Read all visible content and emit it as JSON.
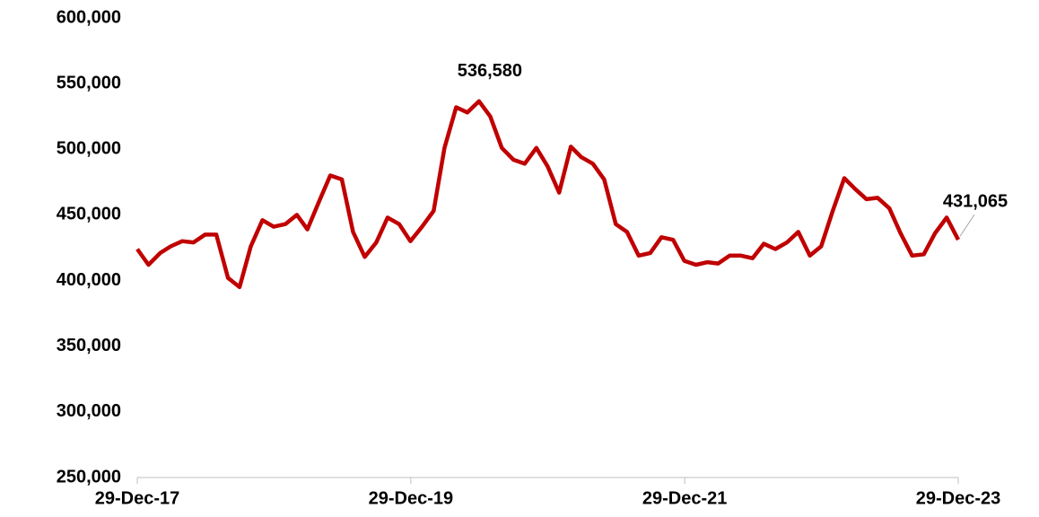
{
  "chart_data": {
    "type": "line",
    "x": [
      "2017-12-29",
      "2018-01-28",
      "2018-02-28",
      "2018-03-28",
      "2018-04-28",
      "2018-05-28",
      "2018-06-28",
      "2018-07-28",
      "2018-08-28",
      "2018-09-28",
      "2018-10-28",
      "2018-11-28",
      "2018-12-28",
      "2019-01-28",
      "2019-02-28",
      "2019-03-28",
      "2019-04-28",
      "2019-05-28",
      "2019-06-28",
      "2019-07-28",
      "2019-08-28",
      "2019-09-28",
      "2019-10-28",
      "2019-11-28",
      "2019-12-28",
      "2020-01-28",
      "2020-02-28",
      "2020-03-28",
      "2020-04-28",
      "2020-05-28",
      "2020-06-28",
      "2020-07-28",
      "2020-08-28",
      "2020-09-28",
      "2020-10-28",
      "2020-11-28",
      "2020-12-28",
      "2021-01-28",
      "2021-02-28",
      "2021-03-28",
      "2021-04-28",
      "2021-05-28",
      "2021-06-28",
      "2021-07-28",
      "2021-08-28",
      "2021-09-28",
      "2021-10-28",
      "2021-11-28",
      "2021-12-28",
      "2022-01-28",
      "2022-02-28",
      "2022-03-28",
      "2022-04-28",
      "2022-05-28",
      "2022-06-28",
      "2022-07-28",
      "2022-08-28",
      "2022-09-28",
      "2022-10-28",
      "2022-11-28",
      "2022-12-28",
      "2023-01-28",
      "2023-02-28",
      "2023-03-28",
      "2023-04-28",
      "2023-05-28",
      "2023-06-28",
      "2023-07-28",
      "2023-08-28",
      "2023-09-28",
      "2023-10-28",
      "2023-11-28",
      "2023-12-29"
    ],
    "series": [
      {
        "color": "#c00000",
        "values": [
          424000,
          412000,
          421000,
          426000,
          430000,
          429000,
          435000,
          435000,
          402000,
          395000,
          426000,
          446000,
          441000,
          443000,
          450000,
          439000,
          460000,
          480000,
          477000,
          437000,
          418000,
          429000,
          448000,
          443000,
          430000,
          441000,
          453000,
          501000,
          532000,
          528000,
          536580,
          525000,
          501000,
          492000,
          489000,
          501000,
          487000,
          467000,
          502000,
          494000,
          489000,
          477000,
          443000,
          437000,
          419000,
          421000,
          433000,
          431000,
          415000,
          412000,
          414000,
          413000,
          419000,
          419000,
          417000,
          428000,
          424000,
          429000,
          437000,
          419000,
          426000,
          453000,
          478000,
          470000,
          462000,
          463000,
          455000,
          436000,
          419000,
          420000,
          436000,
          448000,
          431065
        ],
        "value_labels": [
          null,
          null,
          null,
          null,
          null,
          null,
          null,
          null,
          null,
          null,
          null,
          null,
          null,
          null,
          null,
          null,
          null,
          null,
          null,
          null,
          null,
          null,
          null,
          null,
          null,
          null,
          null,
          null,
          null,
          null,
          "536,580",
          null,
          null,
          null,
          null,
          null,
          null,
          null,
          null,
          null,
          null,
          null,
          null,
          null,
          null,
          null,
          null,
          null,
          null,
          null,
          null,
          null,
          null,
          null,
          null,
          null,
          null,
          null,
          null,
          null,
          null,
          null,
          null,
          null,
          null,
          null,
          null,
          null,
          null,
          null,
          null,
          null,
          "431,065"
        ]
      }
    ],
    "xlim": [
      "2017-12-29",
      "2023-12-29"
    ],
    "xticks": [
      {
        "value": "2017-12-29",
        "label": "29-Dec-17"
      },
      {
        "value": "2019-12-29",
        "label": "29-Dec-19"
      },
      {
        "value": "2021-12-29",
        "label": "29-Dec-21"
      },
      {
        "value": "2023-12-29",
        "label": "29-Dec-23"
      }
    ],
    "ylim": [
      250000,
      600000
    ],
    "yticks": [
      {
        "value": 250000,
        "label": "250,000"
      },
      {
        "value": 300000,
        "label": "300,000"
      },
      {
        "value": 350000,
        "label": "350,000"
      },
      {
        "value": 400000,
        "label": "400,000"
      },
      {
        "value": 450000,
        "label": "450,000"
      },
      {
        "value": 500000,
        "label": "500,000"
      },
      {
        "value": 550000,
        "label": "550,000"
      },
      {
        "value": 600000,
        "label": "600,000"
      }
    ],
    "grid": false
  }
}
